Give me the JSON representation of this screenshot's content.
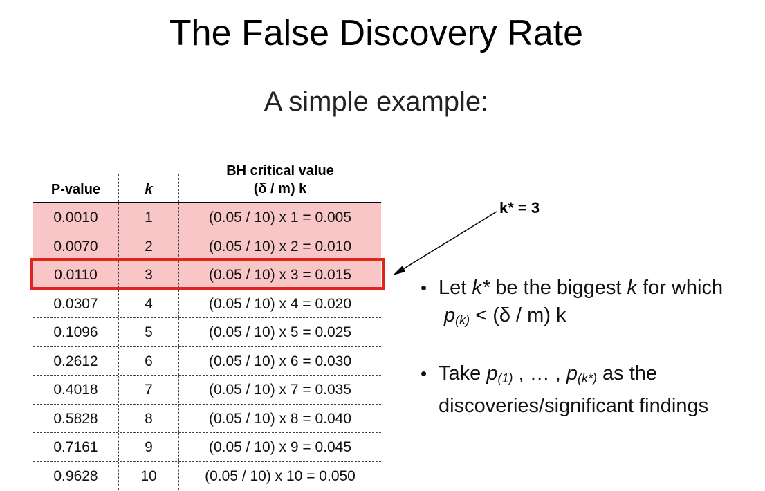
{
  "slide": {
    "title": "The False Discovery Rate",
    "subtitle": "A simple example:"
  },
  "table": {
    "headers": {
      "pvalue": "P-value",
      "k": "k",
      "bh_line1": "BH critical value",
      "bh_line2": "(δ / m) k"
    },
    "rows": [
      {
        "p": "0.0010",
        "k": "1",
        "bh": "(0.05 / 10) x 1 = 0.005"
      },
      {
        "p": "0.0070",
        "k": "2",
        "bh": "(0.05 / 10) x 2 = 0.010"
      },
      {
        "p": "0.0110",
        "k": "3",
        "bh": "(0.05 / 10) x 3 = 0.015"
      },
      {
        "p": "0.0307",
        "k": "4",
        "bh": "(0.05 / 10) x 4 = 0.020"
      },
      {
        "p": "0.1096",
        "k": "5",
        "bh": "(0.05 / 10) x 5 = 0.025"
      },
      {
        "p": "0.2612",
        "k": "6",
        "bh": "(0.05 / 10) x 6 = 0.030"
      },
      {
        "p": "0.4018",
        "k": "7",
        "bh": "(0.05 / 10) x 7 = 0.035"
      },
      {
        "p": "0.5828",
        "k": "8",
        "bh": "(0.05 / 10) x 8 = 0.040"
      },
      {
        "p": "0.7161",
        "k": "9",
        "bh": "(0.05 / 10) x 9 = 0.045"
      },
      {
        "p": "0.9628",
        "k": "10",
        "bh": "(0.05 / 10) x 10 = 0.050"
      }
    ],
    "highlight_color": "#f8c6c6",
    "box_color": "#e0261b"
  },
  "annotation": {
    "kstar_label": "k* = 3"
  },
  "bullets": {
    "b1_pre": "Let ",
    "b1_k1": "k*",
    "b1_mid": " be the biggest ",
    "b1_k2": "k",
    "b1_post": " for which",
    "b1_l2_p": "p",
    "b1_l2_sub": "(k)",
    "b1_l2_rest": " < (δ / m) k",
    "b2_pre": "Take ",
    "b2_p1": "p",
    "b2_sub1": "(1)",
    "b2_mid": " , … , ",
    "b2_p2": "p",
    "b2_sub2": "(k*)",
    "b2_post": " as the",
    "b2_l2": "discoveries/significant findings"
  }
}
